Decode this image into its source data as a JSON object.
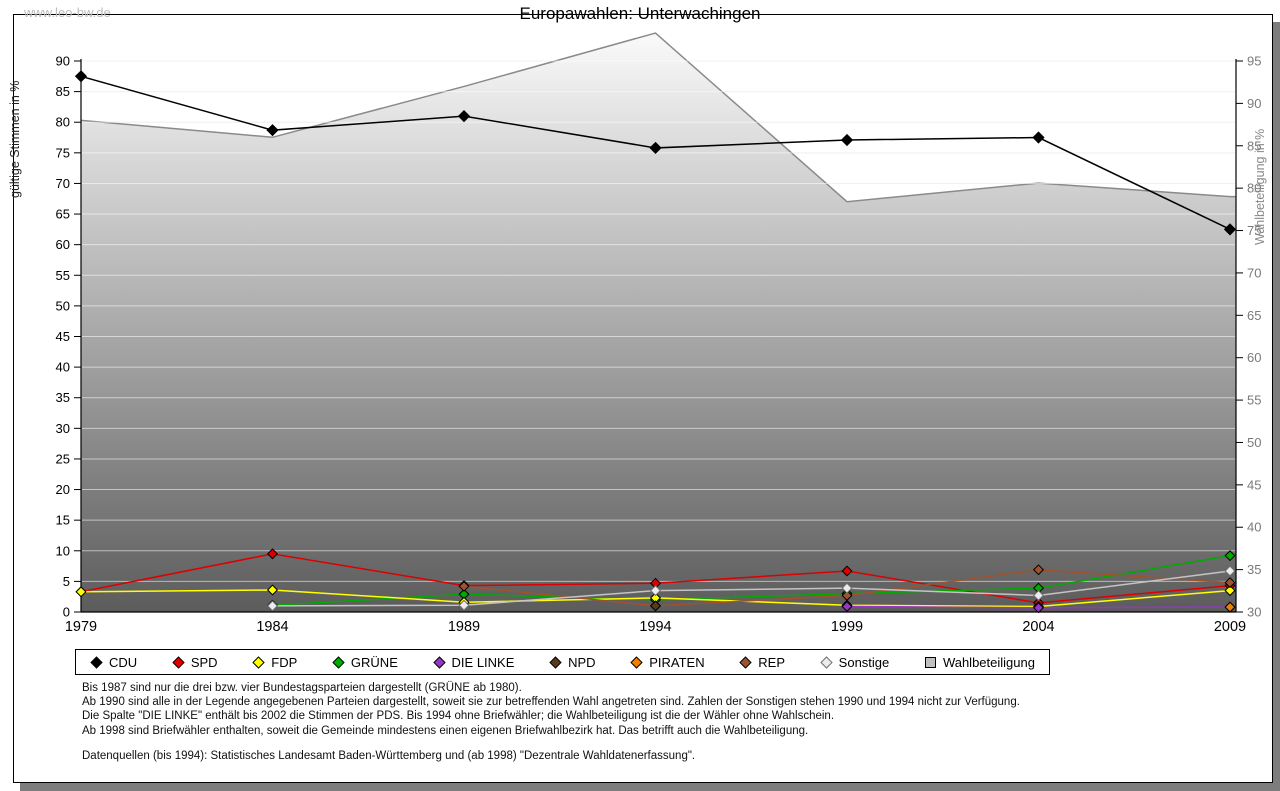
{
  "page": {
    "watermark": "www.leo-bw.de",
    "title": "Europawahlen: Unterwachingen"
  },
  "chart_data": {
    "type": "line",
    "title": "Europawahlen: Unterwachingen",
    "x": [
      1979,
      1984,
      1989,
      1994,
      1999,
      2004,
      2009
    ],
    "axes": {
      "left": {
        "label": "gültige Stimmen in %",
        "min": 0,
        "max": 90,
        "step": 5
      },
      "right": {
        "label": "Wahlbeteiligung in %",
        "min": 30,
        "max": 95,
        "step": 5
      }
    },
    "area_series": {
      "name": "Wahlbeteiligung",
      "axis": "right",
      "values": [
        88.0,
        86.0,
        92.0,
        98.3,
        78.4,
        80.6,
        79.0
      ],
      "fill_top": "#f8f8f8",
      "fill_bottom": "#5c5c5c",
      "edge": "#8a8a8a"
    },
    "series": [
      {
        "name": "CDU",
        "color": "#000000",
        "values": [
          87.5,
          78.7,
          81.0,
          75.8,
          77.1,
          77.5,
          62.5
        ],
        "marker_r": 5.4
      },
      {
        "name": "SPD",
        "color": "#dd0000",
        "values": [
          3.3,
          9.5,
          4.3,
          4.7,
          6.7,
          1.5,
          4.3
        ]
      },
      {
        "name": "GRÜNE",
        "color": "#00aa00",
        "values": [
          null,
          1.1,
          2.9,
          2.0,
          3.0,
          3.9,
          9.2
        ]
      },
      {
        "name": "FDP",
        "color": "#ffff00",
        "values": [
          3.3,
          3.6,
          1.6,
          2.3,
          1.1,
          0.9,
          3.5
        ]
      },
      {
        "name": "DIE LINKE",
        "color": "#9933cc",
        "values": [
          null,
          null,
          null,
          null,
          0.9,
          0.7,
          0.8
        ]
      },
      {
        "name": "REP",
        "color": "#a0522d",
        "values": [
          null,
          null,
          4.2,
          1.0,
          2.7,
          6.9,
          4.8
        ]
      },
      {
        "name": "NPD",
        "color": "#5a3a1a",
        "values": [
          null,
          null,
          null,
          1.0,
          null,
          null,
          null
        ]
      },
      {
        "name": "PIRATEN",
        "color": "#ee7f00",
        "values": [
          null,
          null,
          null,
          null,
          null,
          null,
          0.8
        ]
      },
      {
        "name": "Sonstige",
        "color": "#c4c4c4",
        "marker_fill": "#ececec",
        "marker_stroke": "#6e6e6e",
        "values": [
          null,
          1.0,
          1.1,
          3.5,
          3.9,
          2.7,
          6.7
        ]
      }
    ]
  },
  "legend": {
    "items": [
      {
        "label": "CDU",
        "shape": "diamond",
        "color": "#000000",
        "stroke": "#000000"
      },
      {
        "label": "SPD",
        "shape": "diamond",
        "color": "#dd0000",
        "stroke": "#000000"
      },
      {
        "label": "FDP",
        "shape": "diamond",
        "color": "#ffff00",
        "stroke": "#000000"
      },
      {
        "label": "GRÜNE",
        "shape": "diamond",
        "color": "#00aa00",
        "stroke": "#000000"
      },
      {
        "label": "DIE LINKE",
        "shape": "diamond",
        "color": "#9933cc",
        "stroke": "#000000"
      },
      {
        "label": "NPD",
        "shape": "diamond",
        "color": "#5a3a1a",
        "stroke": "#000000"
      },
      {
        "label": "PIRATEN",
        "shape": "diamond",
        "color": "#ee7f00",
        "stroke": "#000000"
      },
      {
        "label": "REP",
        "shape": "diamond",
        "color": "#a0522d",
        "stroke": "#000000"
      },
      {
        "label": "Sonstige",
        "shape": "diamond",
        "color": "#ececec",
        "stroke": "#6e6e6e"
      },
      {
        "label": "Wahlbeteiligung",
        "shape": "square",
        "color": "#c0c0c0",
        "stroke": "#000000"
      }
    ]
  },
  "footnotes": [
    "Bis 1987 sind nur die drei bzw. vier Bundestagsparteien dargestellt (GRÜNE ab 1980).",
    "Ab 1990 sind alle in der Legende angegebenen Parteien dargestellt, soweit sie zur betreffenden Wahl angetreten sind. Zahlen der Sonstigen stehen 1990 und 1994 nicht zur Verfügung.",
    "Die Spalte \"DIE LINKE\" enthält bis 2002 die Stimmen der PDS. Bis 1994 ohne Briefwähler; die Wahlbeteiligung ist die der Wähler ohne Wahlschein.",
    "Ab 1998 sind Briefwähler enthalten, soweit die Gemeinde mindestens einen eigenen Briefwahlbezirk hat. Das betrifft auch die Wahlbeteiligung."
  ],
  "source_line": "Datenquellen (bis 1994): Statistisches Landesamt Baden-Württemberg und (ab 1998) \"Dezentrale Wahldatenerfassung\"."
}
